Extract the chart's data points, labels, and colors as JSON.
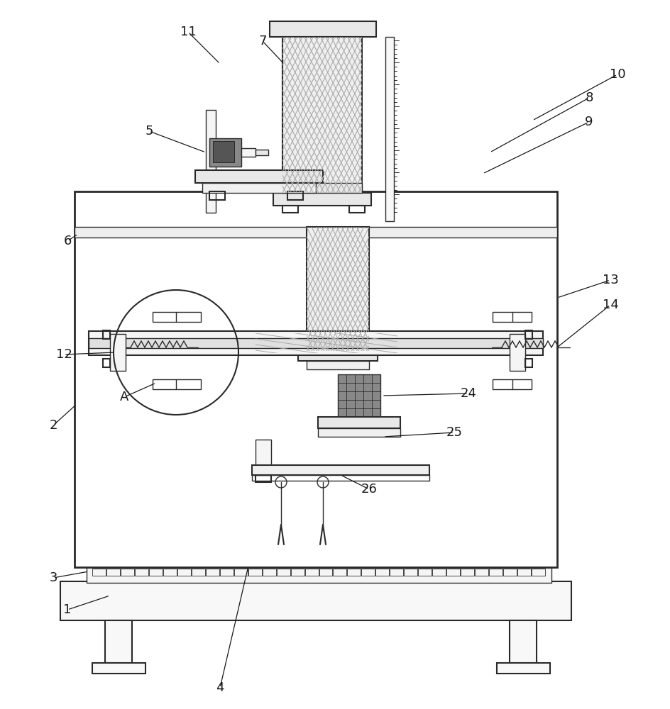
{
  "bg_color": "#ffffff",
  "line_color": "#2a2a2a",
  "label_color": "#1a1a1a",
  "fig_width": 9.44,
  "fig_height": 10.0
}
